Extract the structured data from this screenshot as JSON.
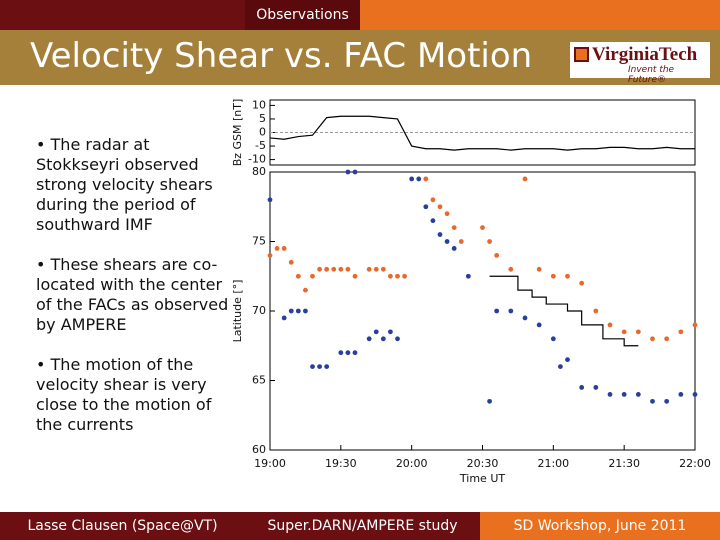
{
  "header": {
    "tab": "Observations",
    "title": "Velocity Shear vs. FAC Motion",
    "logo": "VirginiaTech",
    "logo_tagline": "Invent the Future®"
  },
  "bullets": [
    "The radar at Stokkseyri observed strong velocity shears during the period of southward IMF",
    "These shears are co-located with the center of the FACs as observed by AMPERE",
    "The motion of the velocity shear is very close to the motion of the currents"
  ],
  "footer": {
    "left": "Lasse Clausen (Space@VT)",
    "center": "Super.DARN/AMPERE study",
    "right": "SD Workshop, June 2011"
  },
  "chart_data": [
    {
      "type": "line",
      "ylabel": "Bz GSM [nT]",
      "xlim": [
        19,
        22
      ],
      "ylim": [
        -12,
        12
      ],
      "yticks": [
        10,
        5,
        0,
        -5,
        -10
      ],
      "color": "#000000",
      "zero_line": true,
      "x": [
        19.0,
        19.1,
        19.2,
        19.3,
        19.4,
        19.5,
        19.6,
        19.7,
        19.8,
        19.9,
        20.0,
        20.1,
        20.2,
        20.3,
        20.4,
        20.5,
        20.6,
        20.7,
        20.8,
        20.9,
        21.0,
        21.1,
        21.2,
        21.3,
        21.4,
        21.5,
        21.6,
        21.7,
        21.8,
        21.9,
        22.0
      ],
      "values": [
        -2,
        -2.5,
        -1.5,
        -1,
        5.5,
        6,
        6,
        6,
        5.5,
        5,
        -5,
        -6,
        -6,
        -6.5,
        -6,
        -6,
        -6,
        -6.5,
        -6,
        -6,
        -6,
        -6.5,
        -6,
        -6,
        -5.5,
        -5.5,
        -6,
        -6,
        -5.5,
        -6,
        -6
      ]
    },
    {
      "type": "scatter",
      "ylabel": "Latitude [°]",
      "xlabel": "Time UT",
      "xlim": [
        19,
        22
      ],
      "ylim": [
        60,
        80
      ],
      "yticks": [
        60,
        65,
        70,
        75,
        80
      ],
      "xticks": [
        {
          "value": 19,
          "label": "19:00"
        },
        {
          "value": 19.5,
          "label": "19:30"
        },
        {
          "value": 20,
          "label": "20:00"
        },
        {
          "value": 20.5,
          "label": "20:30"
        },
        {
          "value": 21,
          "label": "21:00"
        },
        {
          "value": 21.5,
          "label": "21:30"
        },
        {
          "value": 22,
          "label": "22:00"
        }
      ],
      "series": [
        {
          "color": "#e8692e",
          "x": [
            19.0,
            19.05,
            19.1,
            19.15,
            19.2,
            19.25,
            19.3,
            19.35,
            19.4,
            19.45,
            19.5,
            19.55,
            19.6,
            19.7,
            19.75,
            19.8,
            19.85,
            19.9,
            19.95,
            20.1,
            20.15,
            20.2,
            20.25,
            20.3,
            20.35,
            20.8,
            20.5,
            20.55,
            20.6,
            20.7,
            20.9,
            21.0,
            21.1,
            21.2,
            21.3,
            21.4,
            21.5,
            21.6,
            21.7,
            21.8,
            21.9,
            22.0
          ],
          "values": [
            74,
            74.5,
            74.5,
            73.5,
            72.5,
            71.5,
            72.5,
            73,
            73,
            73,
            73,
            73,
            72.5,
            73,
            73,
            73,
            72.5,
            72.5,
            72.5,
            79.5,
            78,
            77.5,
            77,
            76,
            75,
            79.5,
            76,
            75,
            74,
            73,
            73,
            72.5,
            72.5,
            72,
            70,
            69,
            68.5,
            68.5,
            68,
            68,
            68.5,
            69
          ]
        },
        {
          "color": "#2a3f9a",
          "x": [
            19.0,
            19.1,
            19.15,
            19.2,
            19.25,
            19.3,
            19.35,
            19.4,
            19.5,
            19.55,
            19.6,
            19.7,
            19.75,
            19.8,
            19.85,
            19.9,
            19.55,
            19.6,
            20.0,
            20.05,
            20.1,
            20.15,
            20.2,
            20.25,
            20.3,
            20.4,
            20.55,
            20.6,
            20.7,
            20.8,
            20.9,
            21.0,
            21.05,
            21.1,
            21.2,
            21.3,
            21.4,
            21.5,
            21.6,
            21.7,
            21.8,
            21.9,
            22.0
          ],
          "values": [
            78,
            69.5,
            70,
            70,
            70,
            66,
            66,
            66,
            67,
            67,
            67,
            68,
            68.5,
            68,
            68.5,
            68,
            80,
            80,
            79.5,
            79.5,
            77.5,
            76.5,
            75.5,
            75,
            74.5,
            72.5,
            63.5,
            70,
            70,
            69.5,
            69,
            68,
            66,
            66.5,
            64.5,
            64.5,
            64,
            64,
            64,
            63.5,
            63.5,
            64,
            64
          ]
        },
        {
          "color": "#000000",
          "step": true,
          "x": [
            20.55,
            20.7,
            20.75,
            20.85,
            20.95,
            21.1,
            21.2,
            21.35,
            21.5,
            21.6
          ],
          "values": [
            72.5,
            72.5,
            71.5,
            71,
            70.5,
            70,
            69,
            68,
            67.5,
            67.5
          ]
        }
      ]
    }
  ]
}
